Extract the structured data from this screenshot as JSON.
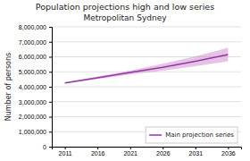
{
  "chart_data": {
    "type": "line",
    "title": "Population projections high and low series",
    "subtitle": "Metropolitan Sydney",
    "ylabel": "Number of persons",
    "x": [
      2011,
      2016,
      2021,
      2026,
      2031,
      2036
    ],
    "series": [
      {
        "name": "Main projection series",
        "color": "#9933AA",
        "values": [
          4250000,
          4600000,
          4950000,
          5300000,
          5700000,
          6150000
        ]
      }
    ],
    "band": {
      "color": "#CC88CC",
      "low": [
        4220000,
        4520000,
        4820000,
        5070000,
        5370000,
        5700000
      ],
      "high": [
        4280000,
        4680000,
        5080000,
        5530000,
        6030000,
        6600000
      ]
    },
    "xlim": [
      2009,
      2038
    ],
    "xticks": [
      2011,
      2016,
      2021,
      2026,
      2031,
      2036
    ],
    "ylim": [
      0,
      8000000
    ],
    "yticks": [
      0,
      {
        "value": 1000000,
        "label": "1,000,000"
      },
      {
        "value": 2000000,
        "label": "2,000,000"
      },
      {
        "value": 3000000,
        "label": "3,000,000"
      },
      {
        "value": 4000000,
        "label": "4,000,000"
      },
      {
        "value": 5000000,
        "label": "5,000,000"
      },
      {
        "value": 6000000,
        "label": "6,000,000"
      },
      {
        "value": 7000000,
        "label": "7,000,000"
      },
      {
        "value": 8000000,
        "label": "8,000,000"
      }
    ],
    "grid": true,
    "legend": "bottom-right"
  }
}
